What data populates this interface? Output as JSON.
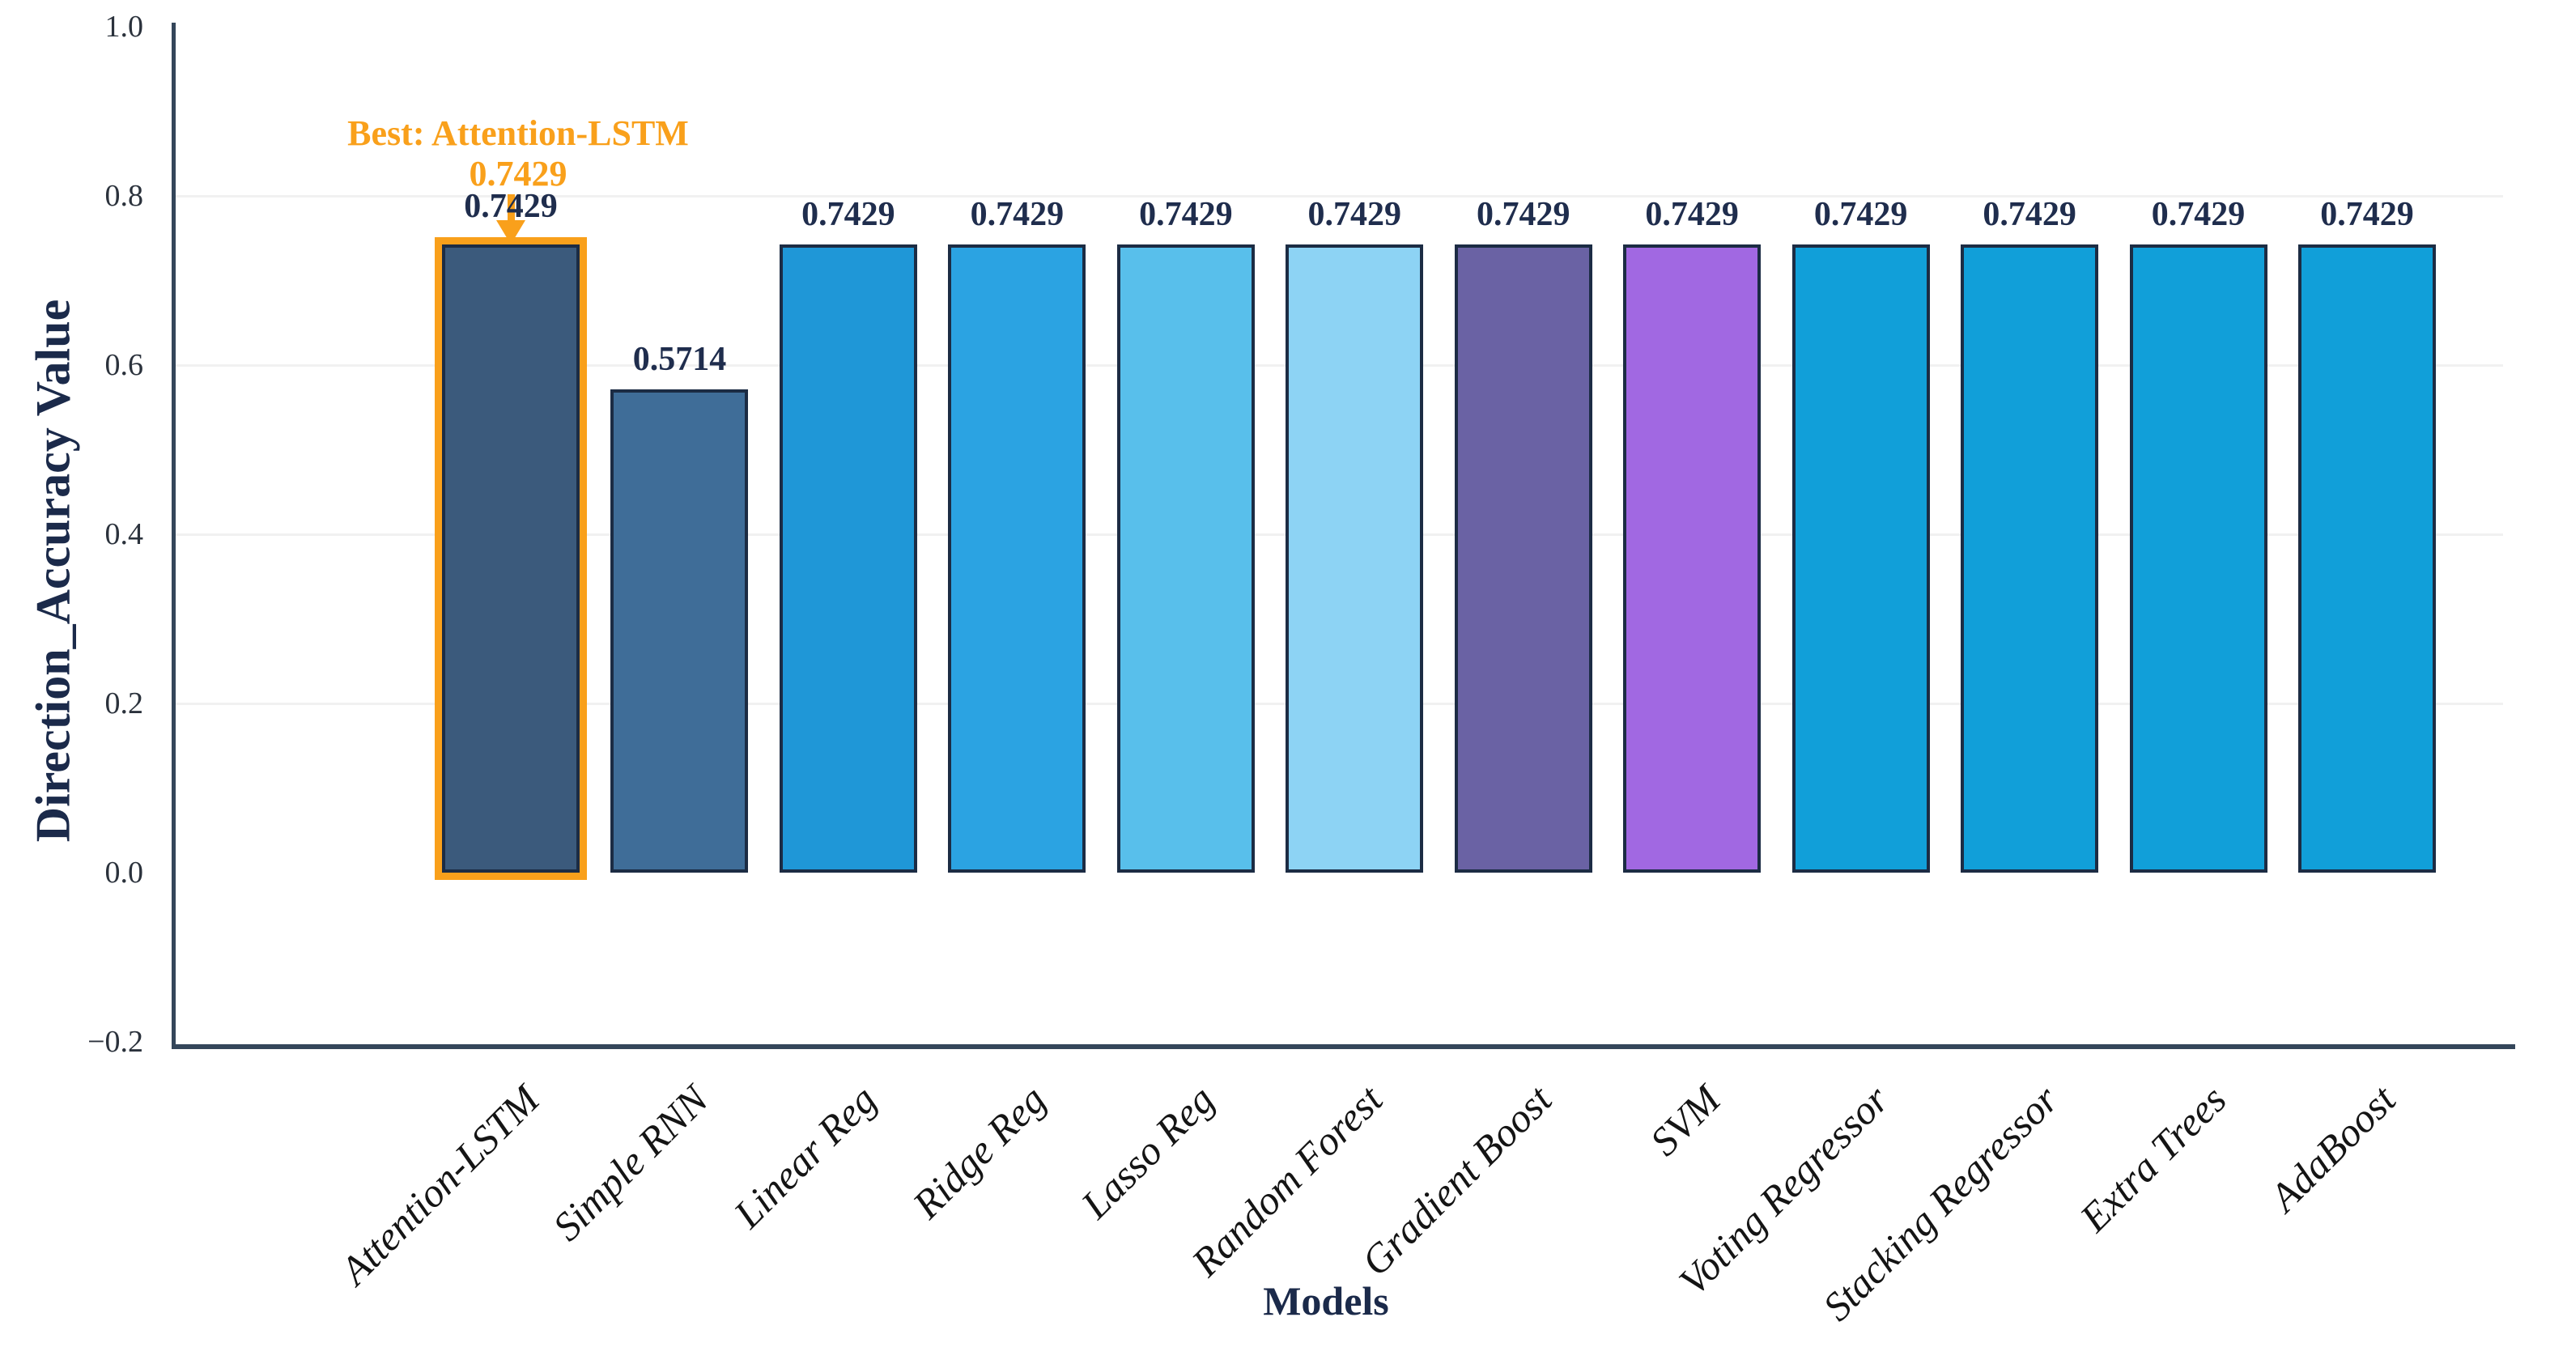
{
  "chart_data": {
    "type": "bar",
    "title": "",
    "xlabel": "Models",
    "ylabel": "Direction_Accuracy Value",
    "categories": [
      "Attention-LSTM",
      "Simple RNN",
      "Linear Reg",
      "Ridge Reg",
      "Lasso Reg",
      "Random Forest",
      "Gradient Boost",
      "SVM",
      "Voting Regressor",
      "Stacking Regressor",
      "Extra Trees",
      "AdaBoost"
    ],
    "values": [
      0.7429,
      0.5714,
      0.7429,
      0.7429,
      0.7429,
      0.7429,
      0.7429,
      0.7429,
      0.7429,
      0.7429,
      0.7429,
      0.7429
    ],
    "value_labels": [
      "0.7429",
      "0.5714",
      "0.7429",
      "0.7429",
      "0.7429",
      "0.7429",
      "0.7429",
      "0.7429",
      "0.7429",
      "0.7429",
      "0.7429",
      "0.7429"
    ],
    "bar_colors": [
      "#3b5a7c",
      "#3f6d98",
      "#1f97d7",
      "#2ba3e2",
      "#58bfeb",
      "#8dd3f4",
      "#6a62a4",
      "#a168e2",
      "#119fd9",
      "#119fd9",
      "#119fd9",
      "#119fd9"
    ],
    "bar_border_color": "#1c2c44",
    "axis_color": "#34465a",
    "axis_title_color": "#1b2a4a",
    "value_label_color": "#1f2d4d",
    "ylim": [
      -0.2,
      1.0
    ],
    "ytick_labels": [
      "1.0",
      "0.8",
      "0.6",
      "0.4",
      "0.2",
      "0.0",
      "−0.2"
    ],
    "ytick_values": [
      1.0,
      0.8,
      0.6,
      0.4,
      0.2,
      0.0,
      -0.2
    ],
    "grid": "faint light-gray horizontal lines at 0.2 intervals",
    "legend": "none",
    "annotation": {
      "line1": "Best: Attention-LSTM",
      "line2": "0.7429",
      "color": "#F9A01B",
      "points_to": "Attention-LSTM"
    },
    "highlight": {
      "category": "Attention-LSTM",
      "outline_color": "#F9A01B"
    }
  }
}
